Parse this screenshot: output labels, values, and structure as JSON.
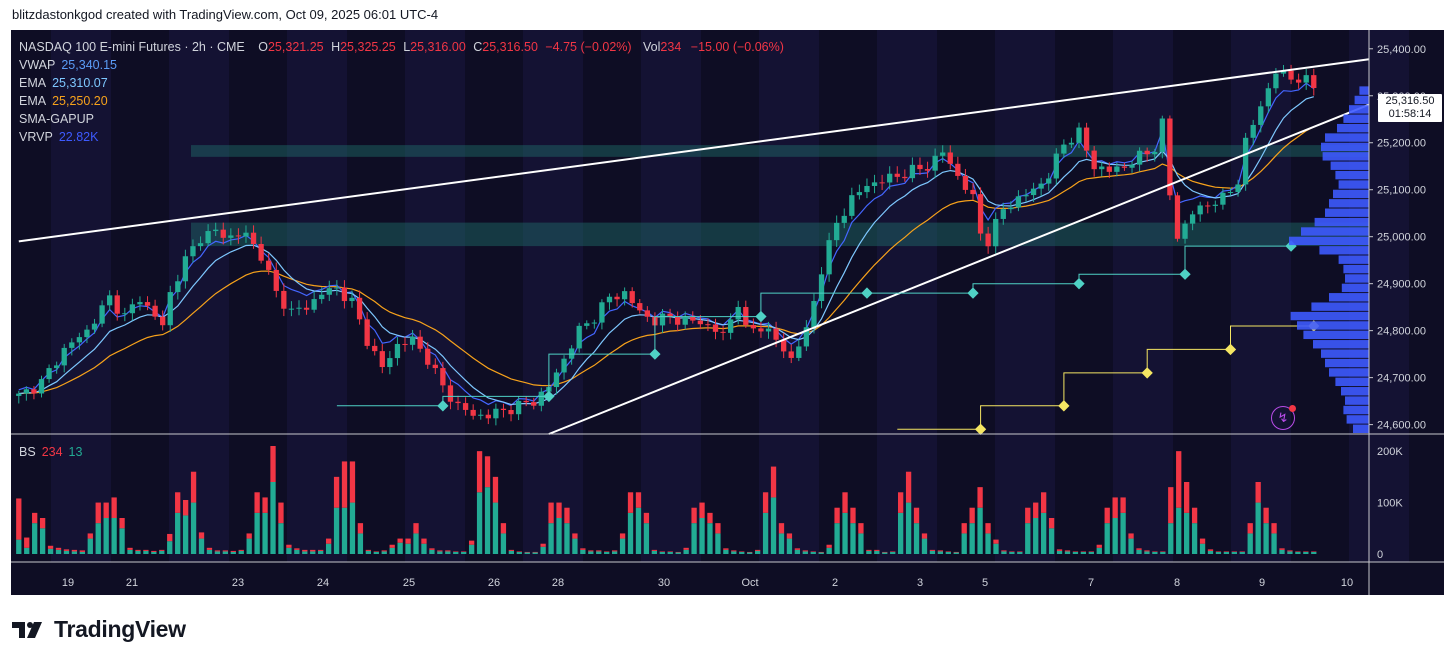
{
  "credit": "blitzdastonkgod created with TradingView.com, Oct 09, 2025 06:01 UTC-4",
  "brand": "TradingView",
  "colors": {
    "up": "#22ab94",
    "down": "#f23645",
    "ema_fast": "#7ec8ff",
    "ema_slow": "#f7a21b",
    "vwap": "#4466ff",
    "background": "#0e0d24",
    "volume_profile": "#3d5afe"
  },
  "legend": {
    "symbol": "NASDAQ 100 E-mini Futures · 2h · CME",
    "open_label": "O",
    "open": "25,321.25",
    "high_label": "H",
    "high": "25,325.25",
    "low_label": "L",
    "low": "25,316.00",
    "close_label": "C",
    "close": "25,316.50",
    "change": "−4.75 (−0.02%)",
    "vol_label": "Vol",
    "vol": "234",
    "vol_change": "−15.00 (−0.06%)",
    "indicators": [
      {
        "name": "VWAP",
        "value": "25,340.15"
      },
      {
        "name": "EMA",
        "value": "25,310.07"
      },
      {
        "name": "EMA",
        "value": "25,250.20"
      },
      {
        "name": "SMA-GAPUP",
        "value": ""
      },
      {
        "name": "VRVP",
        "value": "22.82K"
      }
    ]
  },
  "bs_legend": {
    "name": "BS",
    "v1": "234",
    "v2": "13"
  },
  "price_tag": {
    "price": "25,316.50",
    "timer": "01:58:14"
  },
  "chart_data": [
    {
      "type": "candlestick",
      "title": "NASDAQ 100 E-mini Futures · 2h · CME",
      "x_ticks": [
        "19",
        "21",
        "23",
        "24",
        "25",
        "26",
        "28",
        "30",
        "Oct",
        "2",
        "3",
        "5",
        "7",
        "8",
        "9",
        "10"
      ],
      "y_ticks": [
        "25,400.00",
        "25,300.00",
        "25,200.00",
        "25,100.00",
        "25,000.00",
        "24,900.00",
        "24,800.00",
        "24,700.00",
        "24,600.00"
      ],
      "ylim": [
        24580,
        25440
      ],
      "close_anchors": [
        [
          0,
          24660
        ],
        [
          3,
          24690
        ],
        [
          6,
          24760
        ],
        [
          9,
          24800
        ],
        [
          12,
          24870
        ],
        [
          14,
          24830
        ],
        [
          16,
          24870
        ],
        [
          19,
          24810
        ],
        [
          20,
          24880
        ],
        [
          22,
          24950
        ],
        [
          24,
          25000
        ],
        [
          26,
          25010
        ],
        [
          28,
          25000
        ],
        [
          30,
          25005
        ],
        [
          32,
          24960
        ],
        [
          34,
          24880
        ],
        [
          36,
          24840
        ],
        [
          38,
          24850
        ],
        [
          40,
          24880
        ],
        [
          42,
          24890
        ],
        [
          44,
          24860
        ],
        [
          46,
          24780
        ],
        [
          48,
          24720
        ],
        [
          50,
          24770
        ],
        [
          52,
          24780
        ],
        [
          54,
          24740
        ],
        [
          56,
          24680
        ],
        [
          58,
          24640
        ],
        [
          60,
          24620
        ],
        [
          62,
          24620
        ],
        [
          64,
          24630
        ],
        [
          66,
          24640
        ],
        [
          68,
          24650
        ],
        [
          70,
          24680
        ],
        [
          72,
          24740
        ],
        [
          74,
          24800
        ],
        [
          76,
          24830
        ],
        [
          78,
          24870
        ],
        [
          80,
          24880
        ],
        [
          82,
          24840
        ],
        [
          84,
          24820
        ],
        [
          86,
          24830
        ],
        [
          88,
          24820
        ],
        [
          90,
          24820
        ],
        [
          92,
          24800
        ],
        [
          93,
          24790
        ],
        [
          95,
          24860
        ],
        [
          96,
          24800
        ],
        [
          98,
          24810
        ],
        [
          100,
          24780
        ],
        [
          102,
          24740
        ],
        [
          104,
          24800
        ],
        [
          106,
          24930
        ],
        [
          108,
          25030
        ],
        [
          110,
          25080
        ],
        [
          112,
          25110
        ],
        [
          114,
          25120
        ],
        [
          116,
          25130
        ],
        [
          118,
          25140
        ],
        [
          120,
          25150
        ],
        [
          122,
          25180
        ],
        [
          124,
          25130
        ],
        [
          126,
          25080
        ],
        [
          127,
          25010
        ],
        [
          128,
          24990
        ],
        [
          130,
          25060
        ],
        [
          132,
          25080
        ],
        [
          134,
          25100
        ],
        [
          136,
          25130
        ],
        [
          138,
          25200
        ],
        [
          140,
          25220
        ],
        [
          142,
          25150
        ],
        [
          144,
          25140
        ],
        [
          146,
          25150
        ],
        [
          148,
          25170
        ],
        [
          150,
          25190
        ],
        [
          151,
          25240
        ],
        [
          152,
          25090
        ],
        [
          153,
          25000
        ],
        [
          155,
          25050
        ],
        [
          157,
          25070
        ],
        [
          159,
          25080
        ],
        [
          161,
          25120
        ],
        [
          162,
          25200
        ],
        [
          164,
          25280
        ],
        [
          166,
          25350
        ],
        [
          168,
          25340
        ],
        [
          170,
          25330
        ],
        [
          171,
          25316.5
        ]
      ],
      "ema_fast_last": 25310.07,
      "ema_slow_last": 25250.2,
      "vwap_last": 25340.15,
      "trend_lines": [
        {
          "name": "upper",
          "points": [
            [
              0,
              24990
            ],
            [
              171,
              25350
            ]
          ]
        },
        {
          "name": "lower",
          "points": [
            [
              70,
              24580
            ],
            [
              171,
              25200
            ]
          ]
        }
      ],
      "zones": [
        [
          24980,
          25030
        ],
        [
          25170,
          25195
        ]
      ],
      "yellow_steps": [
        24590,
        24640,
        24710,
        24760,
        24810
      ],
      "teal_steps": [
        24640,
        24660,
        24750,
        24830,
        24880,
        24880,
        24900,
        24920,
        24980
      ]
    },
    {
      "type": "bar",
      "title": "BS",
      "y_ticks": [
        "200K",
        "100K",
        "0"
      ],
      "ylim": [
        0,
        210000
      ],
      "buy": [
        28000,
        12000,
        60000,
        50000,
        10000,
        8000,
        6000,
        5000,
        4000,
        30000,
        60000,
        70000,
        70000,
        50000,
        8000,
        6000,
        6000,
        4000,
        6000,
        25000,
        80000,
        75000,
        100000,
        30000,
        8000,
        5000,
        5000,
        4000,
        6000,
        30000,
        80000,
        80000,
        140000,
        60000,
        12000,
        8000,
        5000,
        5000,
        6000,
        20000,
        90000,
        90000,
        100000,
        40000,
        6000,
        4000,
        5000,
        12000,
        22000,
        20000,
        40000,
        20000,
        8000,
        5000,
        5000,
        4000,
        4000,
        18000,
        120000,
        130000,
        100000,
        40000,
        6000,
        4000,
        3000,
        3000,
        14000,
        60000,
        70000,
        60000,
        30000,
        8000,
        5000,
        5000,
        4000,
        5000,
        30000,
        80000,
        90000,
        60000,
        6000,
        4000,
        4000,
        3000,
        8000,
        60000,
        70000,
        60000,
        40000,
        8000,
        5000,
        4000,
        3000,
        6000,
        80000,
        110000,
        40000,
        30000,
        8000,
        5000,
        4000,
        3000,
        12000,
        60000,
        80000,
        60000,
        40000,
        6000,
        6000,
        3000,
        4000,
        80000,
        100000,
        60000,
        30000,
        6000,
        5000,
        4000,
        3000,
        40000,
        60000,
        90000,
        40000,
        20000,
        5000,
        4000,
        4000,
        60000,
        70000,
        80000,
        50000,
        6000,
        5000,
        4000,
        4000,
        4000,
        12000,
        60000,
        70000,
        80000,
        30000,
        8000,
        5000,
        4000,
        4000,
        60000,
        90000,
        80000,
        60000,
        20000,
        6000,
        4000,
        4000,
        4000,
        4000,
        40000,
        100000,
        60000,
        40000,
        8000,
        5000,
        4000,
        4000,
        4000
      ],
      "sell": [
        80000,
        20000,
        20000,
        20000,
        6000,
        4000,
        3000,
        3000,
        3000,
        10000,
        40000,
        30000,
        40000,
        20000,
        4000,
        2000,
        2000,
        2000,
        2000,
        14000,
        40000,
        30000,
        60000,
        12000,
        4000,
        2000,
        2000,
        2000,
        2000,
        10000,
        40000,
        30000,
        70000,
        40000,
        6000,
        3000,
        3000,
        3000,
        2000,
        10000,
        60000,
        90000,
        80000,
        20000,
        2000,
        1000,
        2000,
        6000,
        8000,
        10000,
        20000,
        10000,
        3000,
        2000,
        2000,
        1000,
        1000,
        8000,
        80000,
        60000,
        50000,
        20000,
        2000,
        1000,
        1000,
        1000,
        6000,
        40000,
        30000,
        30000,
        10000,
        3000,
        2000,
        2000,
        1000,
        2000,
        10000,
        40000,
        30000,
        20000,
        2000,
        1000,
        1000,
        1000,
        4000,
        30000,
        30000,
        20000,
        20000,
        3000,
        2000,
        1000,
        1000,
        2000,
        40000,
        60000,
        20000,
        10000,
        3000,
        2000,
        1000,
        1000,
        6000,
        30000,
        40000,
        30000,
        20000,
        2000,
        2000,
        1000,
        1000,
        40000,
        60000,
        30000,
        10000,
        2000,
        2000,
        1000,
        1000,
        20000,
        30000,
        40000,
        20000,
        8000,
        2000,
        1000,
        1000,
        30000,
        30000,
        40000,
        20000,
        3000,
        2000,
        1000,
        1000,
        1000,
        6000,
        30000,
        40000,
        30000,
        10000,
        3000,
        2000,
        1000,
        1000,
        70000,
        110000,
        60000,
        30000,
        10000,
        3000,
        1000,
        1000,
        1000,
        1000,
        20000,
        40000,
        30000,
        20000,
        3000,
        2000,
        1000,
        1000,
        1000
      ]
    },
    {
      "type": "bar",
      "title": "VRVP",
      "orientation": "horizontal",
      "price_levels": [
        25310,
        25290,
        25270,
        25250,
        25230,
        25210,
        25190,
        25170,
        25150,
        25130,
        25110,
        25090,
        25070,
        25050,
        25030,
        25010,
        24990,
        24970,
        24950,
        24930,
        24910,
        24890,
        24870,
        24850,
        24830,
        24810,
        24790,
        24770,
        24750,
        24730,
        24710,
        24690,
        24670,
        24650,
        24630,
        24610,
        24590
      ],
      "volumes": [
        0.12,
        0.18,
        0.25,
        0.32,
        0.4,
        0.55,
        0.6,
        0.58,
        0.48,
        0.42,
        0.38,
        0.45,
        0.5,
        0.55,
        0.68,
        0.85,
        1.0,
        0.62,
        0.38,
        0.32,
        0.3,
        0.34,
        0.5,
        0.72,
        0.98,
        0.9,
        0.82,
        0.7,
        0.6,
        0.55,
        0.5,
        0.42,
        0.35,
        0.3,
        0.32,
        0.28,
        0.2
      ]
    }
  ]
}
